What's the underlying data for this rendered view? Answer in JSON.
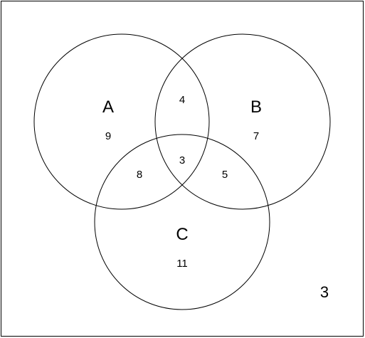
{
  "diagram": {
    "type": "venn",
    "sets": [
      {
        "id": "A",
        "label": "A",
        "only_count": "9"
      },
      {
        "id": "B",
        "label": "B",
        "only_count": "7"
      },
      {
        "id": "C",
        "label": "C",
        "only_count": "11"
      }
    ],
    "intersections": {
      "A_B_only": "4",
      "A_C_only": "8",
      "B_C_only": "5",
      "A_B_C": "3"
    },
    "outside_count": "3"
  }
}
